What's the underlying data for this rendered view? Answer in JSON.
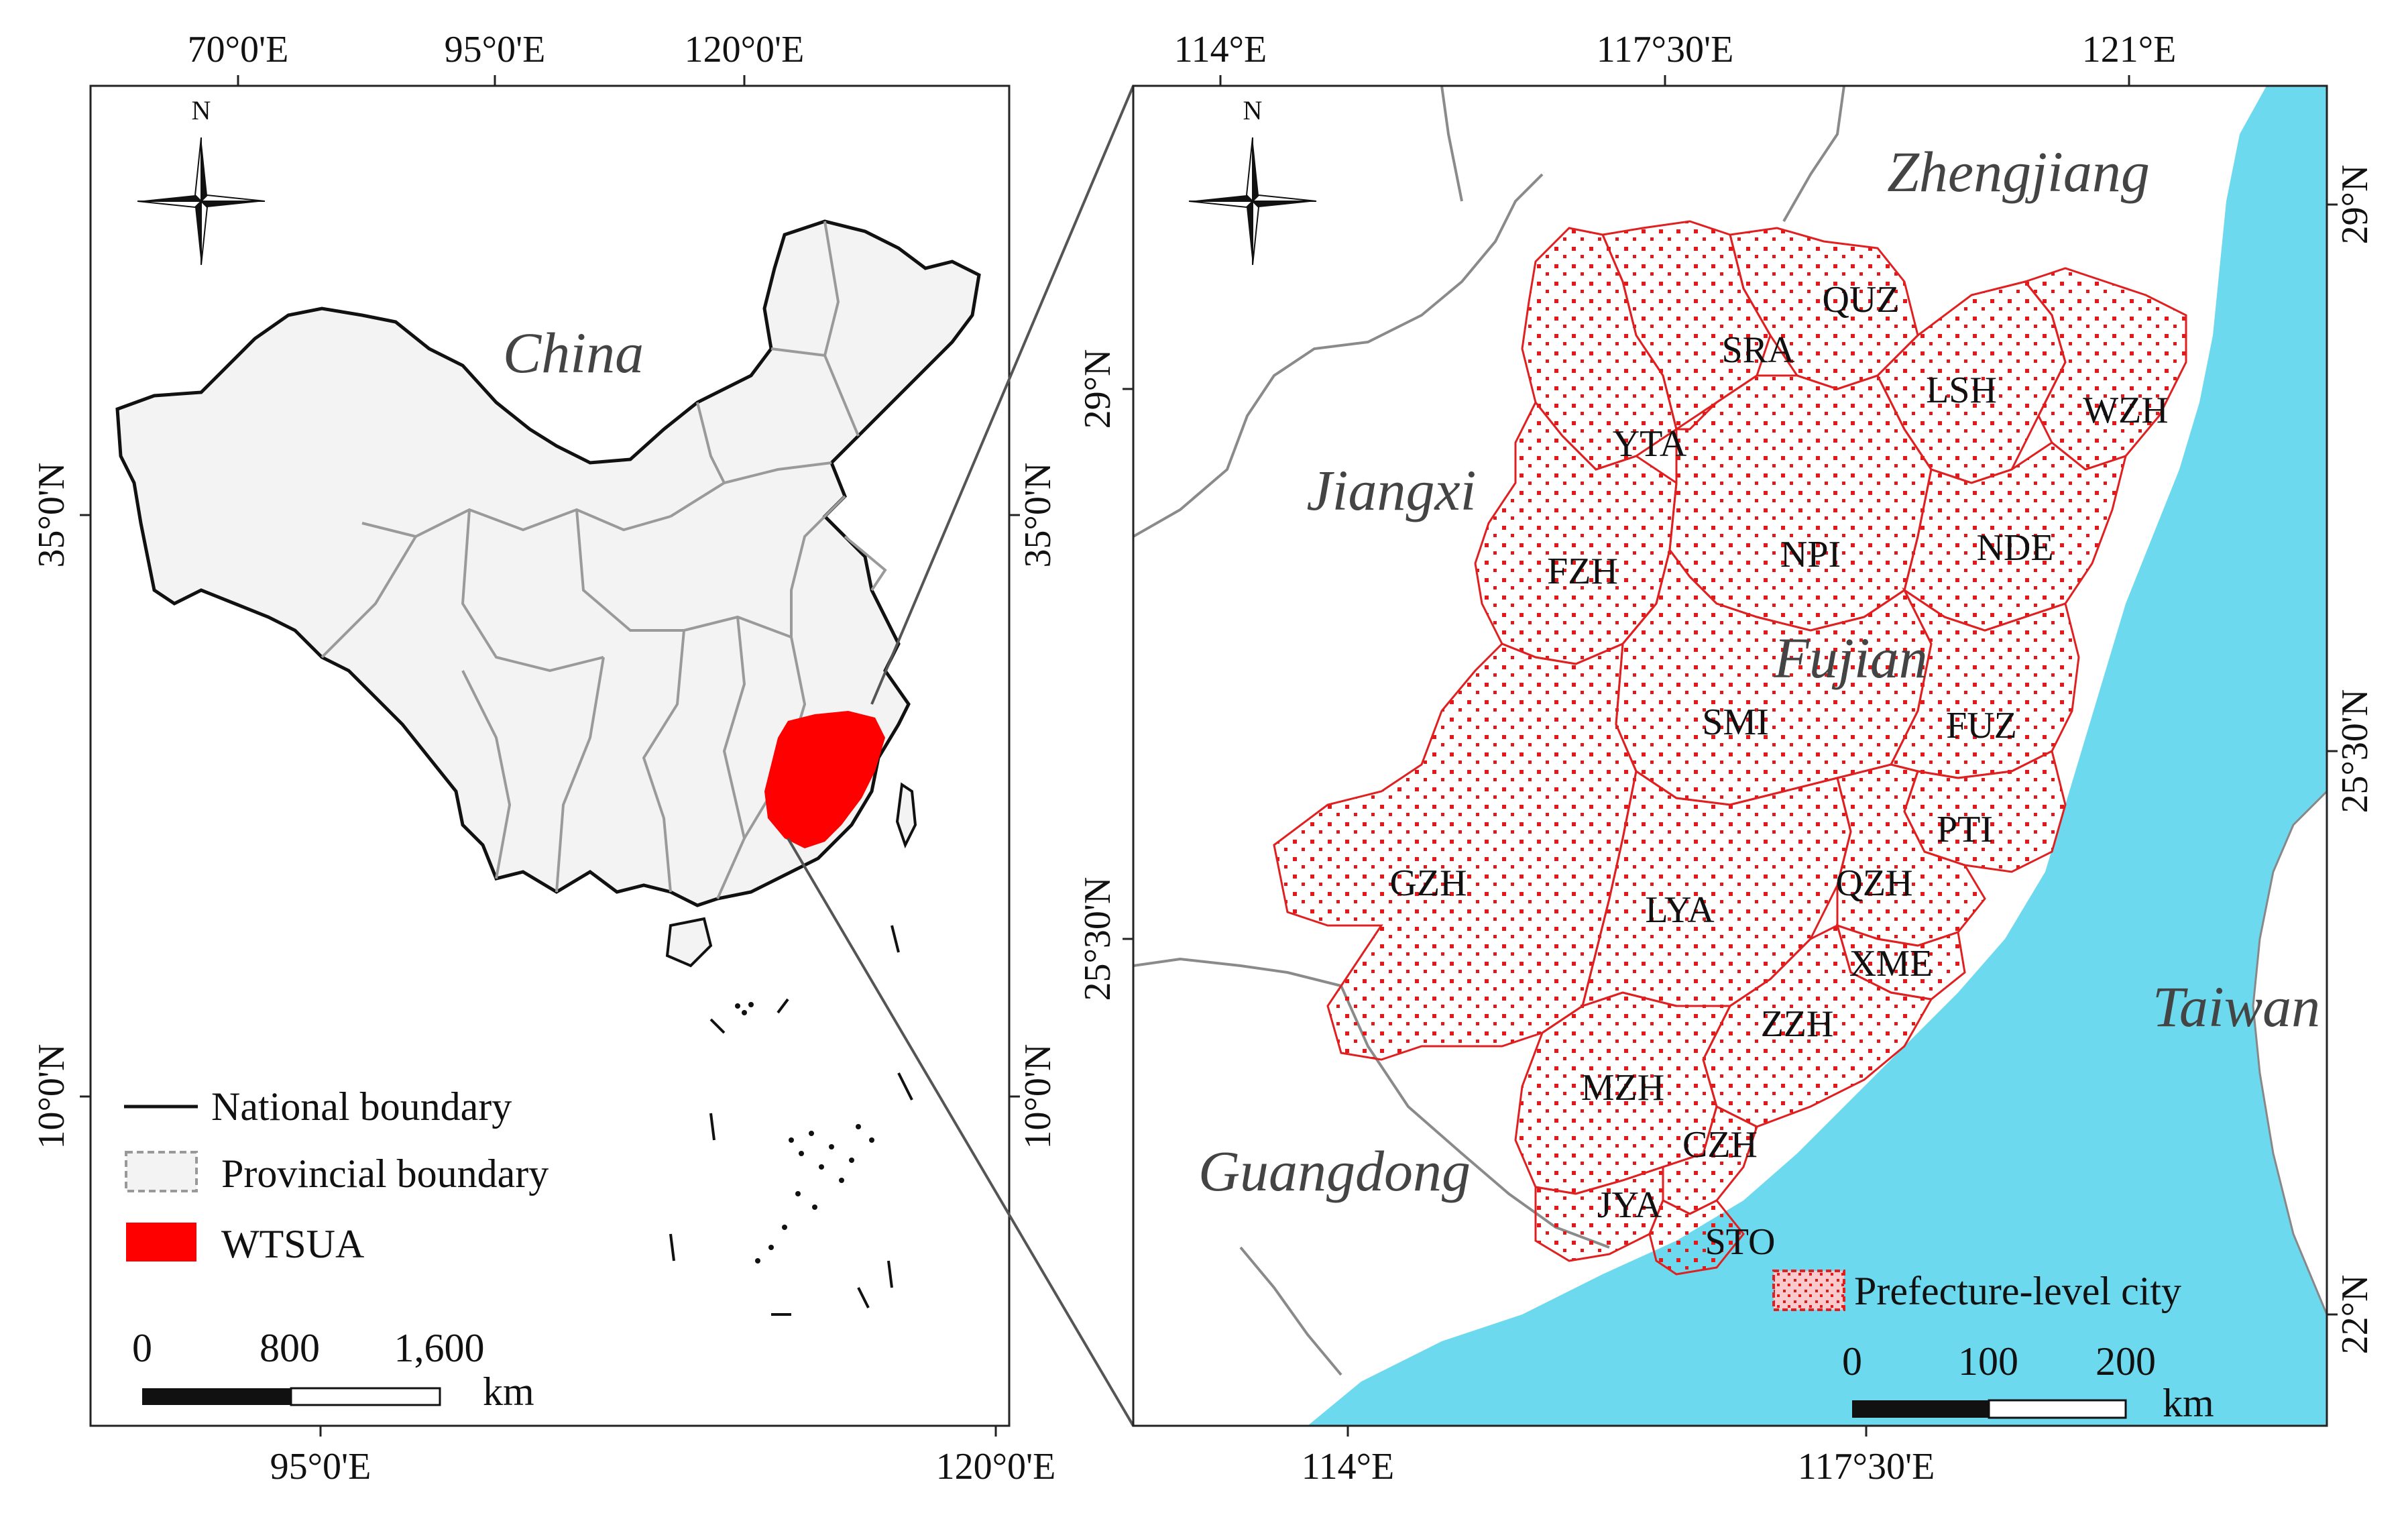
{
  "left_map": {
    "top_ticks": [
      "70°0'E",
      "95°0'E",
      "120°0'E"
    ],
    "bottom_ticks": [
      "95°0'E",
      "120°0'E"
    ],
    "left_ticks": [
      "35°0'N",
      "10°0'N"
    ],
    "right_ticks": [
      "35°0'N",
      "10°0'N"
    ],
    "north_label": "N",
    "country_label": "China",
    "legend": [
      {
        "symbol": "line",
        "label": "National boundary"
      },
      {
        "symbol": "dashed-box",
        "label": "Provincial boundary"
      },
      {
        "symbol": "red-box",
        "label": "WTSUA"
      }
    ],
    "scale_labels": [
      "0",
      "800",
      "1,600"
    ],
    "scale_unit": "km"
  },
  "right_map": {
    "top_ticks": [
      "114°E",
      "117°30'E",
      "121°E"
    ],
    "bottom_ticks": [
      "114°E",
      "117°30'E"
    ],
    "left_ticks": [
      "29°N",
      "25°30'N"
    ],
    "right_ticks": [
      "29°N",
      "25°30'N",
      "22°N"
    ],
    "north_label": "N",
    "regions": [
      "Zhengjiang",
      "Jiangxi",
      "Fujian",
      "Guangdong",
      "Taiwan"
    ],
    "cities": [
      "QUZ",
      "SRA",
      "LSH",
      "WZH",
      "YTA",
      "NPI",
      "NDE",
      "FZH",
      "SMI",
      "FUZ",
      "PTI",
      "GZH",
      "LYA",
      "QZH",
      "XME",
      "ZZH",
      "MZH",
      "CZH",
      "JYA",
      "STO"
    ],
    "legend_label": "Prefecture-level city",
    "scale_labels": [
      "0",
      "100",
      "200"
    ],
    "scale_unit": "km"
  },
  "colors": {
    "study_area": "#ff0000",
    "city_fill": "#f9c9cb",
    "city_border": "#e02020",
    "sea": "#6dd9ee",
    "china_fill": "#f3f3f3",
    "provincial_line": "#9a9a9a"
  }
}
